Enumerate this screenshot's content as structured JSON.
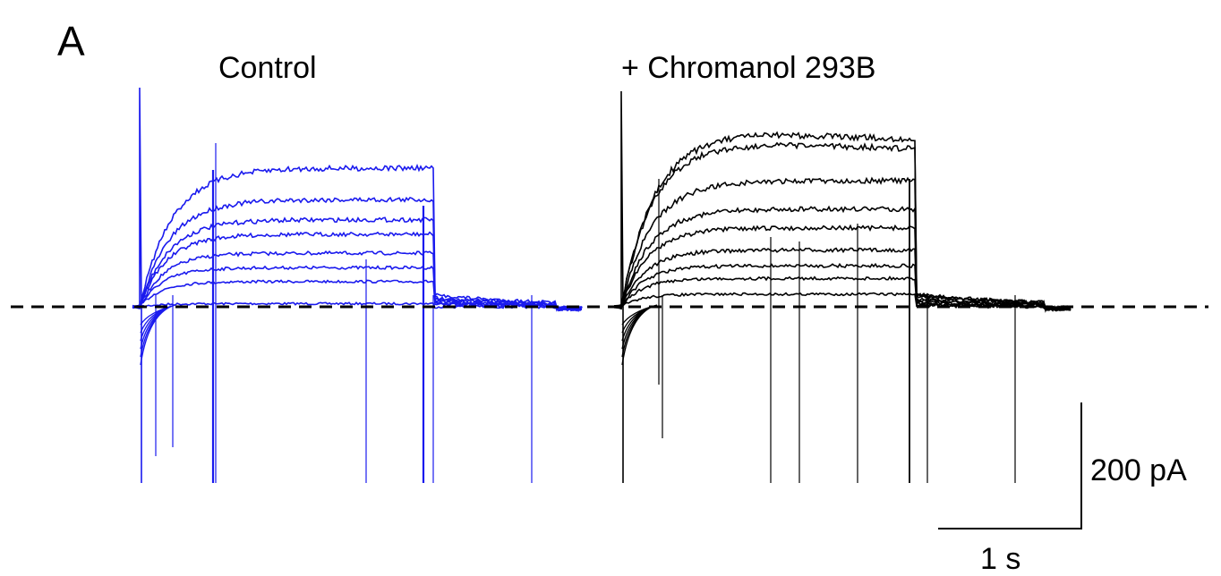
{
  "panel_label": "A",
  "colors": {
    "control": "#1a1aee",
    "drug": "#000000",
    "zero_line": "#000000"
  },
  "chart_data": [
    {
      "type": "line",
      "title": "Control",
      "color": "#1a1aee",
      "x_unit": "s",
      "y_unit": "pA",
      "pulse_duration_s": 2.05,
      "tail_end_s": 2.9,
      "series_steady_state_pA": [
        5,
        40,
        62,
        85,
        115,
        138,
        170,
        220
      ],
      "zero_line": "dashed"
    },
    {
      "type": "line",
      "title": "+ Chromanol 293B",
      "color": "#000000",
      "x_unit": "s",
      "y_unit": "pA",
      "pulse_duration_s": 2.05,
      "tail_end_s": 2.95,
      "series_steady_state_pA": [
        20,
        45,
        65,
        90,
        125,
        155,
        200,
        265,
        285
      ],
      "zero_line": "dashed"
    }
  ],
  "scale_bar": {
    "y_value": 200,
    "y_label": "200 pA",
    "x_value": 1,
    "x_label": "1 s"
  }
}
